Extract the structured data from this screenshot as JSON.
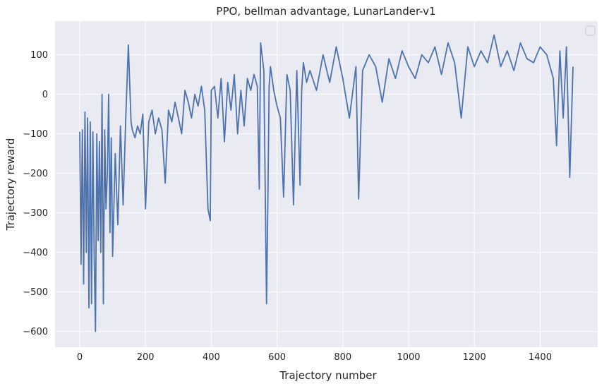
{
  "chart_data": {
    "type": "line",
    "title": "PPO, bellman advantage, LunarLander-v1",
    "xlabel": "Trajectory number",
    "ylabel": "Trajectory reward",
    "xlim": [
      -75,
      1575
    ],
    "ylim": [
      -640,
      185
    ],
    "xticks": [
      0,
      200,
      400,
      600,
      800,
      1000,
      1200,
      1400
    ],
    "yticks": [
      -600,
      -500,
      -400,
      -300,
      -200,
      -100,
      0,
      100
    ],
    "grid": true,
    "legend": "top-right (empty)",
    "background": "#eaeaf2",
    "grid_color": "#ffffff",
    "line_color": "#4c72b0",
    "series": [
      {
        "x": [
          0,
          4,
          8,
          12,
          16,
          20,
          24,
          28,
          32,
          36,
          40,
          44,
          48,
          52,
          56,
          60,
          64,
          68,
          72,
          76,
          80,
          84,
          88,
          92,
          96,
          100,
          108,
          116,
          124,
          132,
          140,
          148,
          156,
          160,
          168,
          176,
          184,
          192,
          200,
          210,
          220,
          230,
          240,
          250,
          260,
          270,
          280,
          290,
          300,
          310,
          320,
          330,
          340,
          350,
          360,
          370,
          380,
          390,
          397,
          400,
          410,
          420,
          430,
          440,
          450,
          460,
          470,
          480,
          490,
          500,
          510,
          520,
          530,
          540,
          546,
          550,
          560,
          568,
          572,
          576,
          580,
          590,
          600,
          610,
          620,
          630,
          640,
          650,
          660,
          670,
          675,
          680,
          690,
          700,
          720,
          740,
          760,
          780,
          800,
          820,
          840,
          848,
          860,
          880,
          900,
          920,
          940,
          960,
          980,
          1000,
          1020,
          1040,
          1060,
          1080,
          1100,
          1120,
          1140,
          1160,
          1180,
          1200,
          1220,
          1240,
          1260,
          1280,
          1300,
          1320,
          1340,
          1360,
          1380,
          1400,
          1420,
          1440,
          1450,
          1460,
          1470,
          1480,
          1490,
          1500
        ],
        "y": [
          -95,
          -430,
          -90,
          -480,
          -45,
          -400,
          -60,
          -540,
          -70,
          -530,
          -95,
          -410,
          -600,
          -100,
          -370,
          -120,
          -400,
          0,
          -530,
          -90,
          -290,
          -200,
          0,
          -350,
          -110,
          -410,
          -150,
          -330,
          -80,
          -280,
          -60,
          125,
          -70,
          -90,
          -110,
          -80,
          -100,
          -50,
          -290,
          -70,
          -40,
          -100,
          -60,
          -90,
          -225,
          -40,
          -70,
          -20,
          -60,
          -100,
          10,
          -20,
          -60,
          0,
          -30,
          20,
          -40,
          -290,
          -320,
          10,
          20,
          -60,
          40,
          -120,
          30,
          -40,
          50,
          -100,
          10,
          -80,
          40,
          10,
          50,
          20,
          -240,
          130,
          60,
          -530,
          -280,
          20,
          70,
          10,
          -30,
          -60,
          -260,
          50,
          10,
          -280,
          60,
          -230,
          10,
          80,
          30,
          60,
          10,
          100,
          30,
          120,
          40,
          -60,
          70,
          -265,
          60,
          100,
          70,
          -20,
          90,
          40,
          110,
          70,
          40,
          100,
          80,
          120,
          50,
          130,
          80,
          -60,
          120,
          70,
          110,
          80,
          150,
          70,
          110,
          60,
          130,
          90,
          80,
          120,
          100,
          40,
          -130,
          110,
          -60,
          120,
          -210,
          70
        ]
      }
    ]
  }
}
